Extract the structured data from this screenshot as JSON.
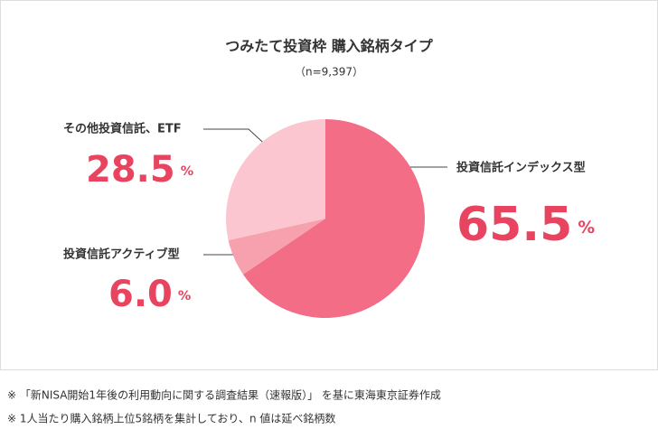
{
  "chart_data": {
    "type": "pie",
    "title": "つみたて投資枠 購入銘柄タイプ",
    "subtitle": "（n=9,397）",
    "categories": [
      "投資信託インデックス型",
      "投資信託アクティブ型",
      "その他投資信託、ETF"
    ],
    "values": [
      65.5,
      6.0,
      28.5
    ],
    "value_labels": [
      "65.5%",
      "6.0%",
      "28.5%"
    ],
    "colors": [
      "#f26d85",
      "#f7a0ae",
      "#fbc6cf"
    ]
  },
  "notes": [
    "※ 「新NISA開始1年後の利用動向に関する調査結果（速報版）」 を基に東海東京証券作成",
    "※ 1人当たり購入銘柄上位5銘柄を集計しており、n 値は延べ銘柄数"
  ]
}
